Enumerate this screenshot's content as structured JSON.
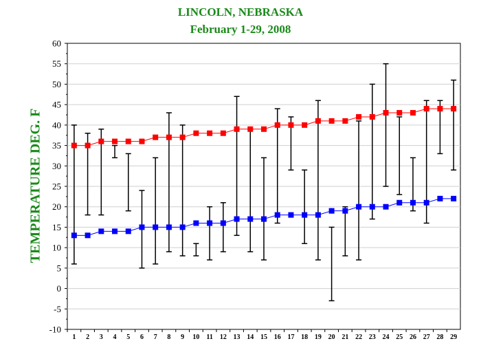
{
  "colors": {
    "title": "#1a8a1a",
    "high": "#ff0000",
    "low": "#0000ff",
    "range": "#000000"
  },
  "chart_data": {
    "type": "line",
    "title": "LINCOLN, NEBRASKA",
    "subtitle": "February 1-29,  2008",
    "ylabel": "TEMPERATURE DEG. F",
    "xlabel": "",
    "ylim": [
      -10,
      60
    ],
    "yticks": [
      -10,
      -5,
      0,
      5,
      10,
      15,
      20,
      25,
      30,
      35,
      40,
      45,
      50,
      55,
      60
    ],
    "x": [
      1,
      2,
      3,
      4,
      5,
      6,
      7,
      8,
      9,
      10,
      11,
      12,
      13,
      14,
      15,
      16,
      17,
      18,
      19,
      20,
      21,
      22,
      23,
      24,
      25,
      26,
      27,
      28,
      29
    ],
    "grid": true,
    "series": [
      {
        "role": "normal_high",
        "marker": "square",
        "values": [
          35,
          35,
          36,
          36,
          36,
          36,
          37,
          37,
          37,
          38,
          38,
          38,
          39,
          39,
          39,
          40,
          40,
          40,
          41,
          41,
          41,
          42,
          42,
          43,
          43,
          43,
          44,
          44,
          44
        ]
      },
      {
        "role": "normal_low",
        "marker": "square",
        "values": [
          13,
          13,
          14,
          14,
          14,
          15,
          15,
          15,
          15,
          16,
          16,
          16,
          17,
          17,
          17,
          18,
          18,
          18,
          18,
          19,
          19,
          20,
          20,
          20,
          21,
          21,
          21,
          22,
          22
        ]
      }
    ],
    "daily_range": {
      "high": [
        40,
        38,
        39,
        35,
        33,
        24,
        32,
        43,
        40,
        11,
        20,
        21,
        47,
        39,
        32,
        44,
        42,
        29,
        46,
        15,
        20,
        41,
        50,
        55,
        42,
        32,
        46,
        46,
        51
      ],
      "low": [
        6,
        18,
        18,
        32,
        19,
        5,
        6,
        9,
        8,
        8,
        7,
        9,
        13,
        9,
        7,
        16,
        29,
        11,
        7,
        -3,
        8,
        7,
        17,
        25,
        23,
        19,
        16,
        33,
        29
      ]
    }
  }
}
